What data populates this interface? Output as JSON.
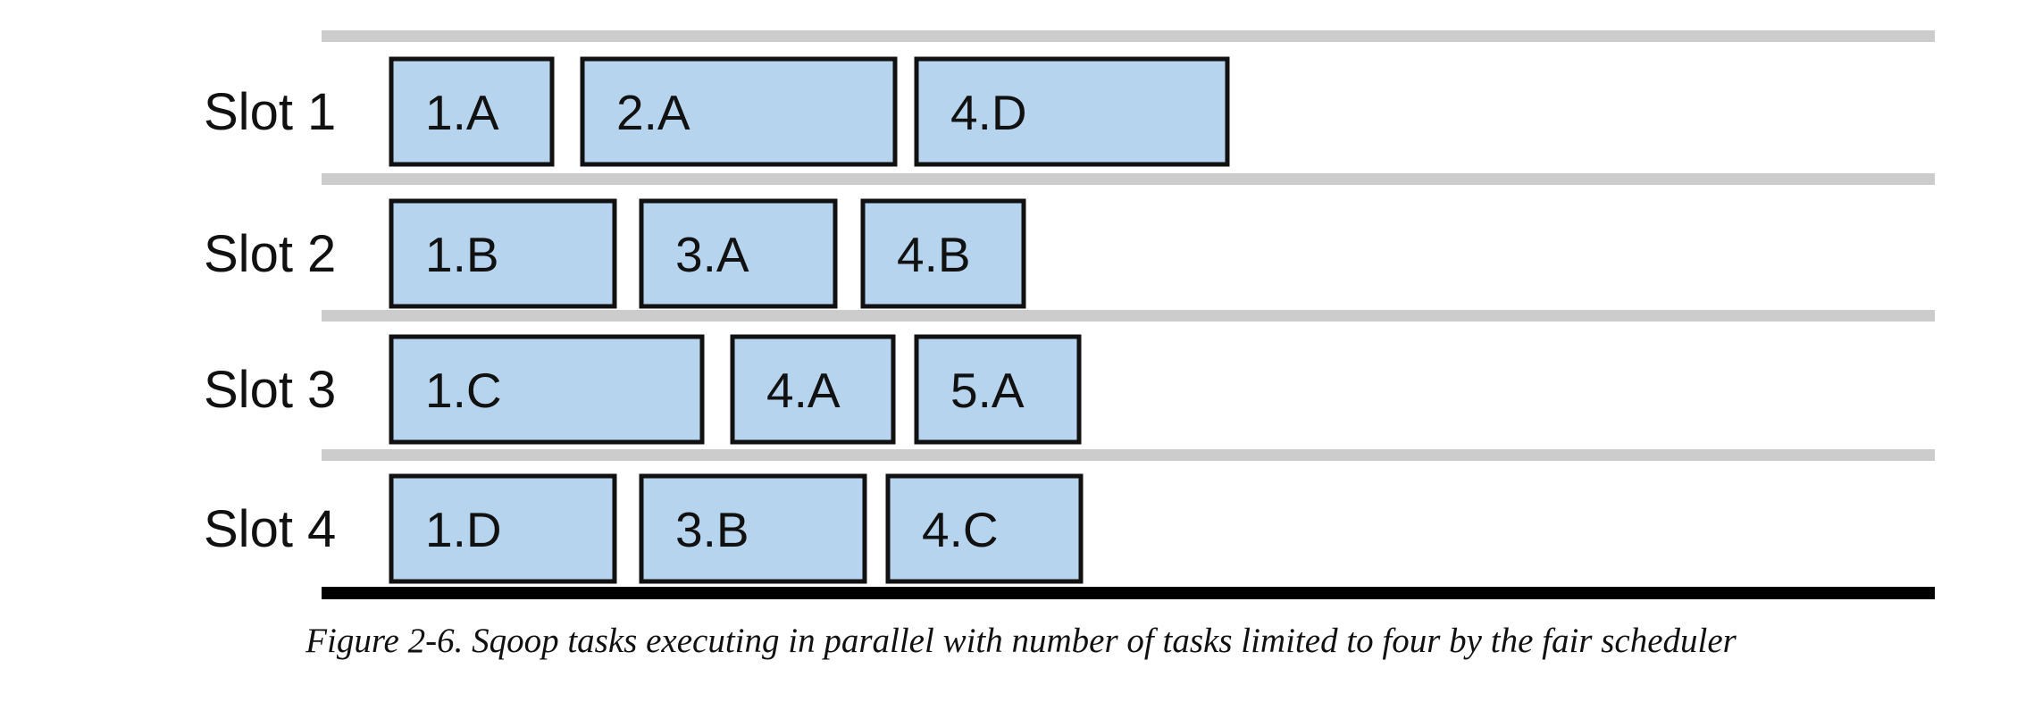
{
  "diagram": {
    "colors": {
      "task_fill": "#b6d4ee",
      "task_stroke": "#111111",
      "row_line": "#cccccc",
      "base_line": "#000000"
    },
    "slots": [
      {
        "label": "Slot 1",
        "tasks": [
          "1.A",
          "2.A",
          "4.D"
        ]
      },
      {
        "label": "Slot 2",
        "tasks": [
          "1.B",
          "3.A",
          "4.B"
        ]
      },
      {
        "label": "Slot 3",
        "tasks": [
          "1.C",
          "4.A",
          "5.A"
        ]
      },
      {
        "label": "Slot 4",
        "tasks": [
          "1.D",
          "3.B",
          "4.C"
        ]
      }
    ]
  },
  "caption": "Figure 2-6. Sqoop tasks executing in parallel with number of tasks limited to four by the fair scheduler"
}
